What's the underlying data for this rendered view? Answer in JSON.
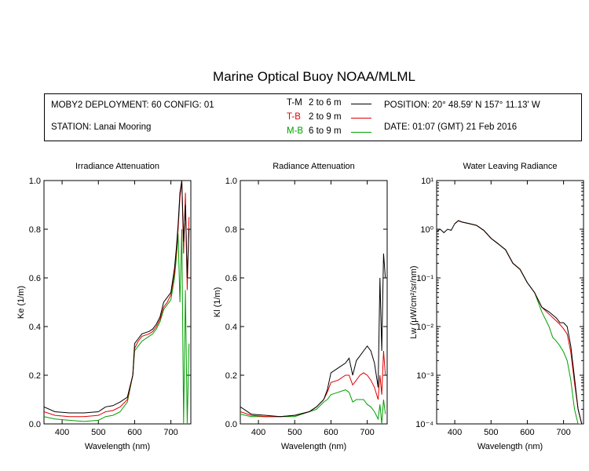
{
  "title": "Marine Optical Buoy NOAA/MLML",
  "info": {
    "deployment": "MOBY2 DEPLOYMENT: 60 CONFIG: 01",
    "station": "STATION: Lanai Mooring",
    "position": "POSITION: 20° 48.59' N   157° 11.13' W",
    "date": "DATE: 01:07 (GMT) 21 Feb 2016",
    "legend": [
      {
        "code": "T-M",
        "range": "2 to 6  m",
        "color": "#000000"
      },
      {
        "code": "T-B",
        "range": "2 to 9  m",
        "color": "#e00000"
      },
      {
        "code": "M-B",
        "range": "6 to 9  m",
        "color": "#00a000"
      }
    ]
  },
  "chart_data": [
    {
      "type": "line",
      "title": "Irradiance Attenuation",
      "xlabel": "Wavelength (nm)",
      "ylabel": "Ke  (1/m)",
      "xlim": [
        350,
        755
      ],
      "ylim": [
        0,
        1.0
      ],
      "xticks": [
        400,
        500,
        600,
        700
      ],
      "yticks": [
        0.0,
        0.2,
        0.4,
        0.6,
        0.8,
        1.0
      ],
      "ytick_labels": [
        "0.0",
        "0.2",
        "0.4",
        "0.6",
        "0.8",
        "1.0"
      ],
      "series": [
        {
          "code": "T-M",
          "color": "#000000",
          "x": [
            350,
            380,
            420,
            460,
            500,
            520,
            540,
            560,
            580,
            595,
            600,
            610,
            620,
            640,
            650,
            660,
            670,
            680,
            690,
            700,
            710,
            715,
            720,
            725,
            730,
            735,
            740,
            745,
            750
          ],
          "y": [
            0.07,
            0.05,
            0.045,
            0.045,
            0.05,
            0.07,
            0.075,
            0.09,
            0.11,
            0.2,
            0.33,
            0.35,
            0.37,
            0.38,
            0.39,
            0.41,
            0.44,
            0.5,
            0.52,
            0.54,
            0.64,
            0.72,
            0.82,
            0.95,
            1.0,
            0.75,
            0.9,
            0.6,
            0.8
          ]
        },
        {
          "code": "T-B",
          "color": "#e00000",
          "x": [
            350,
            380,
            420,
            460,
            500,
            520,
            540,
            560,
            580,
            595,
            600,
            610,
            620,
            640,
            650,
            660,
            670,
            680,
            690,
            700,
            710,
            715,
            720,
            725,
            730,
            735,
            740,
            745,
            750
          ],
          "y": [
            0.05,
            0.035,
            0.03,
            0.03,
            0.035,
            0.05,
            0.055,
            0.07,
            0.1,
            0.2,
            0.31,
            0.34,
            0.36,
            0.37,
            0.38,
            0.4,
            0.43,
            0.48,
            0.5,
            0.53,
            0.62,
            0.7,
            0.8,
            0.93,
            1.0,
            0.7,
            0.95,
            0.55,
            0.85
          ]
        },
        {
          "code": "M-B",
          "color": "#00a000",
          "x": [
            350,
            380,
            420,
            460,
            500,
            520,
            540,
            560,
            580,
            595,
            600,
            610,
            620,
            640,
            650,
            660,
            670,
            680,
            690,
            700,
            710,
            715,
            720,
            725,
            730,
            735,
            740,
            745,
            750
          ],
          "y": [
            0.03,
            0.02,
            0.015,
            0.01,
            0.015,
            0.03,
            0.035,
            0.05,
            0.09,
            0.2,
            0.3,
            0.32,
            0.34,
            0.36,
            0.37,
            0.39,
            0.42,
            0.47,
            0.49,
            0.51,
            0.6,
            0.68,
            0.78,
            0.5,
            0.8,
            0.0,
            0.55,
            0.0,
            0.33
          ]
        }
      ]
    },
    {
      "type": "line",
      "title": "Radiance Attenuation",
      "xlabel": "Wavelength (nm)",
      "ylabel": "Kl  (1/m)",
      "xlim": [
        350,
        755
      ],
      "ylim": [
        0,
        1.0
      ],
      "xticks": [
        400,
        500,
        600,
        700
      ],
      "yticks": [
        0.0,
        0.2,
        0.4,
        0.6,
        0.8,
        1.0
      ],
      "ytick_labels": [
        "0.0",
        "0.2",
        "0.4",
        "0.6",
        "0.8",
        "1.0"
      ],
      "series": [
        {
          "code": "T-M",
          "color": "#000000",
          "x": [
            350,
            380,
            420,
            460,
            500,
            540,
            560,
            580,
            590,
            600,
            620,
            640,
            650,
            660,
            670,
            680,
            690,
            700,
            710,
            720,
            730,
            735,
            740,
            745,
            750
          ],
          "y": [
            0.07,
            0.04,
            0.035,
            0.03,
            0.035,
            0.05,
            0.07,
            0.1,
            0.14,
            0.21,
            0.23,
            0.25,
            0.27,
            0.2,
            0.26,
            0.28,
            0.3,
            0.32,
            0.3,
            0.25,
            0.15,
            0.6,
            0.3,
            0.7,
            0.6
          ]
        },
        {
          "code": "T-B",
          "color": "#e00000",
          "x": [
            350,
            380,
            420,
            460,
            500,
            540,
            560,
            580,
            590,
            600,
            620,
            640,
            650,
            660,
            670,
            680,
            690,
            700,
            710,
            720,
            730,
            735,
            740,
            745,
            750
          ],
          "y": [
            0.05,
            0.035,
            0.03,
            0.03,
            0.035,
            0.05,
            0.07,
            0.1,
            0.13,
            0.17,
            0.18,
            0.2,
            0.2,
            0.16,
            0.18,
            0.2,
            0.21,
            0.2,
            0.18,
            0.15,
            0.1,
            0.2,
            0.12,
            0.3,
            0.2
          ]
        },
        {
          "code": "M-B",
          "color": "#00a000",
          "x": [
            350,
            380,
            420,
            460,
            500,
            540,
            560,
            580,
            590,
            600,
            620,
            640,
            650,
            660,
            670,
            680,
            690,
            700,
            710,
            720,
            730,
            735,
            740,
            745,
            750
          ],
          "y": [
            0.04,
            0.03,
            0.03,
            0.03,
            0.03,
            0.05,
            0.06,
            0.09,
            0.1,
            0.12,
            0.13,
            0.14,
            0.13,
            0.09,
            0.1,
            0.1,
            0.1,
            0.08,
            0.07,
            0.05,
            0.02,
            0.08,
            0.0,
            0.1,
            0.04
          ]
        }
      ]
    },
    {
      "type": "line",
      "title": "Water Leaving Radiance",
      "xlabel": "Wavelength (nm)",
      "ylabel": "Lw  (μW/cm²/sr/nm)",
      "yscale": "log",
      "xlim": [
        350,
        755
      ],
      "ylim": [
        0.0001,
        10
      ],
      "xticks": [
        400,
        500,
        600,
        700
      ],
      "yticks": [
        0.0001,
        0.001,
        0.01,
        0.1,
        1,
        10
      ],
      "ytick_labels": [
        "10⁻⁴",
        "10⁻³",
        "10⁻²",
        "10⁻¹",
        "10⁰",
        "10¹"
      ],
      "series": [
        {
          "code": "T-M",
          "color": "#000000",
          "x": [
            350,
            360,
            370,
            380,
            390,
            400,
            410,
            420,
            440,
            460,
            480,
            500,
            520,
            540,
            560,
            580,
            600,
            620,
            640,
            660,
            680,
            690,
            700,
            710,
            720,
            730,
            740,
            750
          ],
          "y": [
            0.9,
            1.0,
            0.85,
            1.0,
            0.95,
            1.3,
            1.5,
            1.4,
            1.3,
            1.2,
            0.95,
            0.65,
            0.5,
            0.38,
            0.2,
            0.15,
            0.08,
            0.05,
            0.025,
            0.02,
            0.015,
            0.012,
            0.012,
            0.01,
            0.004,
            0.0009,
            0.0002,
            0.0001
          ]
        },
        {
          "code": "T-B",
          "color": "#e00000",
          "x": [
            400,
            410,
            420,
            440,
            460,
            480,
            500,
            520,
            540,
            560,
            580,
            600,
            620,
            640,
            660,
            680,
            690,
            700,
            710,
            720,
            730,
            740,
            750
          ],
          "y": [
            1.3,
            1.5,
            1.4,
            1.3,
            1.2,
            0.95,
            0.65,
            0.5,
            0.38,
            0.2,
            0.15,
            0.08,
            0.05,
            0.025,
            0.018,
            0.013,
            0.011,
            0.009,
            0.007,
            0.003,
            0.0007,
            0.0002,
            0.0001
          ]
        },
        {
          "code": "M-B",
          "color": "#00a000",
          "x": [
            400,
            410,
            420,
            440,
            460,
            480,
            500,
            520,
            540,
            560,
            580,
            600,
            620,
            640,
            660,
            670,
            680,
            690,
            700,
            710,
            720,
            730,
            740,
            750
          ],
          "y": [
            1.3,
            1.5,
            1.4,
            1.3,
            1.2,
            0.95,
            0.65,
            0.5,
            0.38,
            0.2,
            0.15,
            0.08,
            0.05,
            0.02,
            0.01,
            0.006,
            0.005,
            0.004,
            0.003,
            0.002,
            0.0008,
            0.0002,
            0.0001,
            0.0001
          ]
        }
      ]
    }
  ]
}
